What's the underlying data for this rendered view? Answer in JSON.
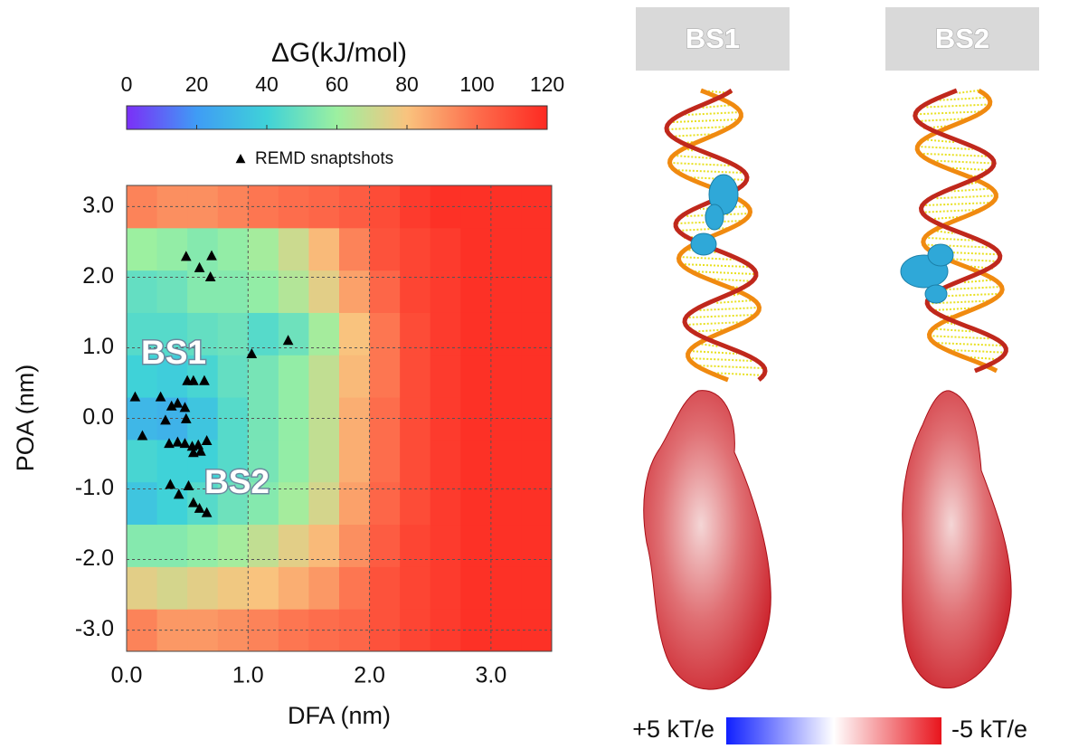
{
  "chart_data": {
    "type": "heatmap",
    "colorbar_title": "ΔG(kJ/mol)",
    "x_label": "DFA (nm)",
    "y_label": "POA (nm)",
    "xlim": [
      0,
      3.5
    ],
    "ylim": [
      -3.3,
      3.3
    ],
    "xticks": [
      {
        "value": 0,
        "label": "0.0"
      },
      {
        "value": 1,
        "label": "1.0"
      },
      {
        "value": 2,
        "label": "2.0"
      },
      {
        "value": 3,
        "label": "3.0"
      }
    ],
    "yticks": [
      {
        "value": 3,
        "label": "3.0"
      },
      {
        "value": 2,
        "label": "2.0"
      },
      {
        "value": 1,
        "label": "1.0"
      },
      {
        "value": 0,
        "label": "0.0"
      },
      {
        "value": -1,
        "label": "-1.0"
      },
      {
        "value": -2,
        "label": "-2.0"
      },
      {
        "value": -3,
        "label": "-3.0"
      }
    ],
    "grid": true,
    "zlim": [
      0,
      120
    ],
    "zticks": [
      0,
      20,
      40,
      60,
      80,
      100,
      120
    ],
    "colorscale": [
      {
        "value": 0,
        "color": "#7b2ff7"
      },
      {
        "value": 20,
        "color": "#3f9cf5"
      },
      {
        "value": 40,
        "color": "#3fd2d8"
      },
      {
        "value": 60,
        "color": "#9cf0a0"
      },
      {
        "value": 80,
        "color": "#f9c37e"
      },
      {
        "value": 100,
        "color": "#fd6d4c"
      },
      {
        "value": 120,
        "color": "#fd2a22"
      }
    ],
    "x_bins": [
      0,
      0.25,
      0.5,
      0.75,
      1,
      1.25,
      1.5,
      1.75,
      2,
      2.25,
      2.5,
      2.75,
      3,
      3.25,
      3.5
    ],
    "y_bins": [
      -3.3,
      -2.7,
      -2.1,
      -1.5,
      -0.9,
      -0.3,
      0.3,
      0.9,
      1.5,
      2.1,
      2.7,
      3.3
    ],
    "z": [
      [
        95,
        90,
        90,
        92,
        95,
        98,
        100,
        102,
        108,
        112,
        115,
        118,
        118,
        118
      ],
      [
        75,
        72,
        75,
        78,
        80,
        85,
        90,
        98,
        108,
        112,
        115,
        118,
        118,
        118
      ],
      [
        55,
        55,
        58,
        62,
        68,
        75,
        82,
        92,
        105,
        112,
        115,
        118,
        118,
        118
      ],
      [
        35,
        40,
        45,
        50,
        55,
        62,
        72,
        88,
        102,
        110,
        115,
        118,
        118,
        118
      ],
      [
        42,
        40,
        40,
        45,
        52,
        58,
        68,
        85,
        100,
        110,
        115,
        118,
        118,
        118
      ],
      [
        30,
        28,
        35,
        45,
        52,
        58,
        68,
        85,
        100,
        110,
        115,
        118,
        118,
        118
      ],
      [
        40,
        38,
        42,
        48,
        52,
        58,
        68,
        82,
        98,
        110,
        115,
        118,
        118,
        118
      ],
      [
        45,
        45,
        48,
        50,
        45,
        50,
        62,
        80,
        98,
        110,
        115,
        118,
        118,
        118
      ],
      [
        48,
        50,
        55,
        55,
        58,
        65,
        75,
        88,
        102,
        112,
        115,
        118,
        118,
        118
      ],
      [
        60,
        58,
        55,
        58,
        62,
        70,
        82,
        95,
        108,
        112,
        115,
        118,
        118,
        118
      ],
      [
        95,
        92,
        92,
        95,
        98,
        100,
        102,
        105,
        110,
        115,
        118,
        118,
        118,
        118
      ]
    ],
    "series": [
      {
        "name": "REMD snaptshots",
        "color": "#000000",
        "marker": "triangle",
        "x": [
          0.49,
          0.6,
          0.7,
          0.69,
          1.03,
          1.33,
          0.5,
          0.55,
          0.64,
          0.07,
          0.28,
          0.37,
          0.42,
          0.48,
          0.32,
          0.49,
          0.13,
          0.35,
          0.42,
          0.48,
          0.54,
          0.59,
          0.66,
          0.55,
          0.61,
          0.36,
          0.43,
          0.51,
          0.55,
          0.6,
          0.66
        ],
        "y": [
          2.29,
          2.13,
          2.3,
          2.0,
          0.91,
          1.1,
          0.53,
          0.53,
          0.53,
          0.3,
          0.3,
          0.17,
          0.21,
          0.15,
          -0.03,
          -0.01,
          -0.25,
          -0.36,
          -0.34,
          -0.36,
          -0.4,
          -0.38,
          -0.32,
          -0.49,
          -0.47,
          -0.94,
          -1.08,
          -0.96,
          -1.2,
          -1.28,
          -1.34
        ]
      }
    ],
    "annotations": [
      "BS1",
      "BS2"
    ]
  },
  "panels": [
    {
      "label": "BS1"
    },
    {
      "label": "BS2"
    }
  ],
  "potential_scale": {
    "positive_label": "+5 kT/e",
    "negative_label": "-5 kT/e"
  }
}
